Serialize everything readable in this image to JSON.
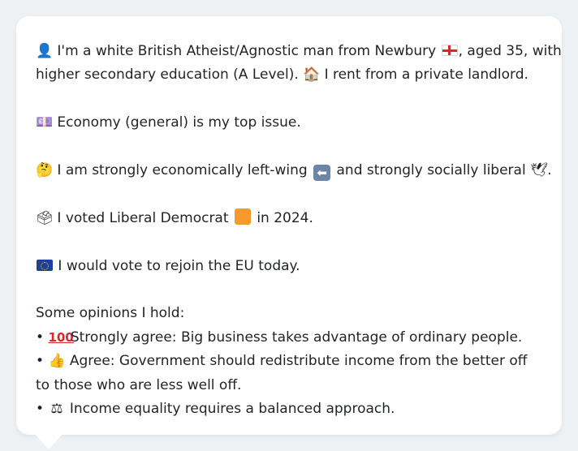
{
  "profile": {
    "line1_a": "I'm a white British Atheist/Agnostic man from Newbury",
    "line1_b": ", aged 35, with",
    "line2_a": "higher secondary education (A Level).",
    "line2_b": "I rent from a private landlord.",
    "top_issue": "Economy (general) is my top issue.",
    "stance_a": "I am strongly economically left-wing",
    "stance_b": "and strongly socially liberal",
    "stance_c": ".",
    "vote_a": "I voted Liberal Democrat",
    "vote_b": "in 2024.",
    "eu": "I would vote to rejoin the EU today.",
    "opinions_heading": "Some opinions I hold:",
    "bullet": "•",
    "opinion_1": "Strongly agree: Big business takes advantage of ordinary people.",
    "opinion_2": "Agree: Government should redistribute income from the better off to those who are less well off.",
    "opinion_3": "Income equality requires a balanced approach."
  },
  "icons": {
    "person": "person-icon",
    "england_flag": "england-flag-icon",
    "house": "house-icon",
    "money": "money-icon",
    "thinking": "thinking-face-icon",
    "left_arrow": "left-arrow-icon",
    "dove": "dove-icon",
    "ballot": "ballot-box-icon",
    "orange_square": "orange-square-icon",
    "eu_flag": "eu-flag-icon",
    "hundred": "hundred-points-icon",
    "thumbs_up": "thumbs-up-icon",
    "scales": "balance-scale-icon"
  },
  "colors": {
    "card_bg": "#ffffff",
    "page_bg": "#eef1f4",
    "text": "#1f2328",
    "lib_dem_orange": "#f79a2e"
  }
}
